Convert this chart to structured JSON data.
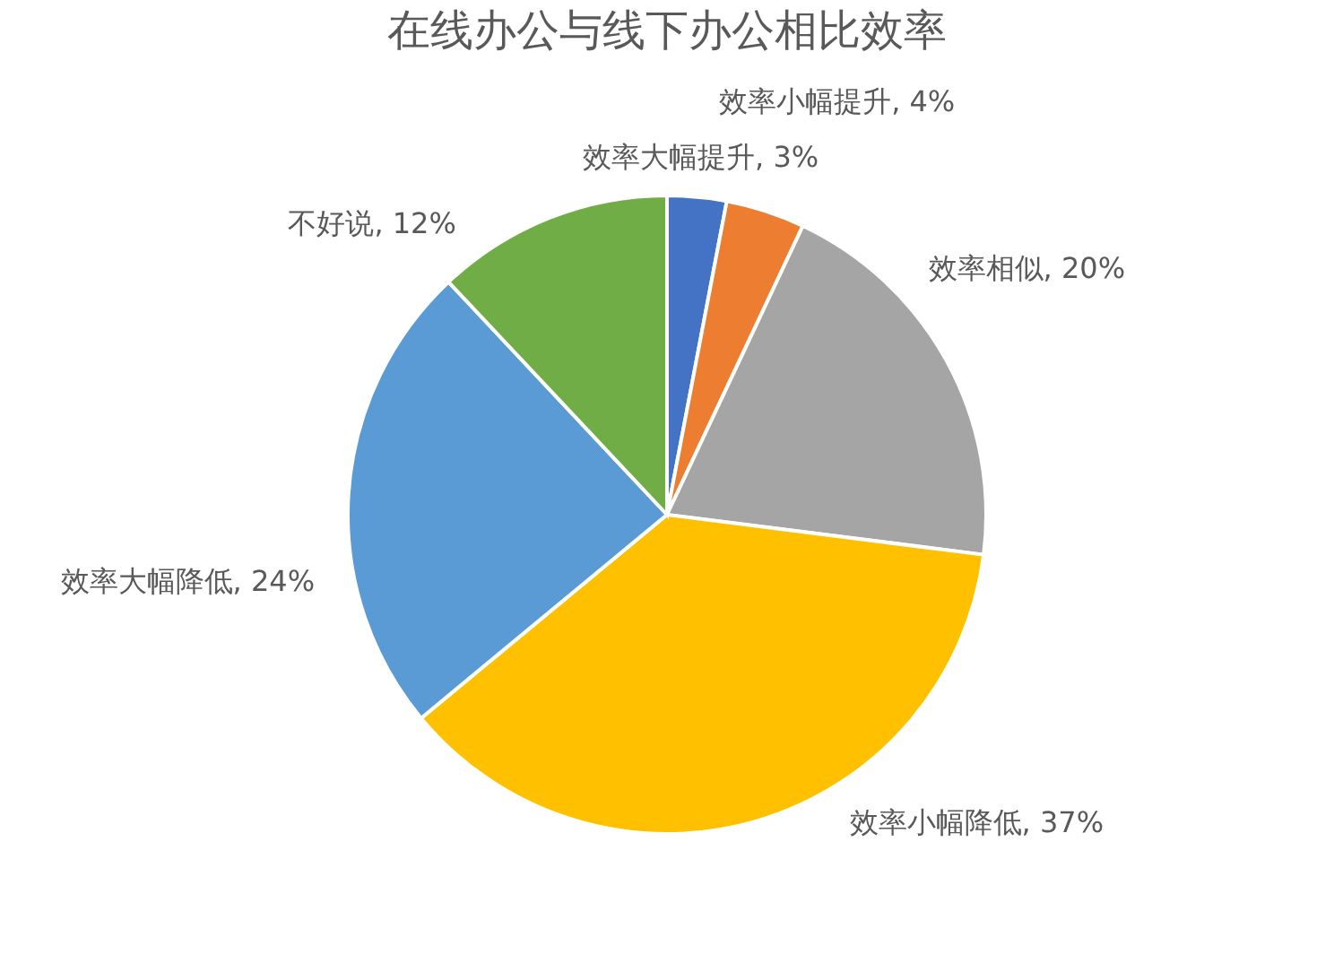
{
  "chart_data": {
    "type": "pie",
    "title": "在线办公与线下办公相比效率",
    "categories": [
      "效率大幅提升",
      "效率小幅提升",
      "效率相似",
      "效率小幅降低",
      "效率大幅降低",
      "不好说"
    ],
    "values": [
      3,
      4,
      20,
      37,
      24,
      12
    ],
    "value_labels": [
      "3%",
      "4%",
      "20%",
      "37%",
      "24%",
      "12%"
    ],
    "colors": [
      "#4472c4",
      "#ed7d31",
      "#a5a5a5",
      "#ffc000",
      "#5b9bd5",
      "#70ad47"
    ]
  }
}
